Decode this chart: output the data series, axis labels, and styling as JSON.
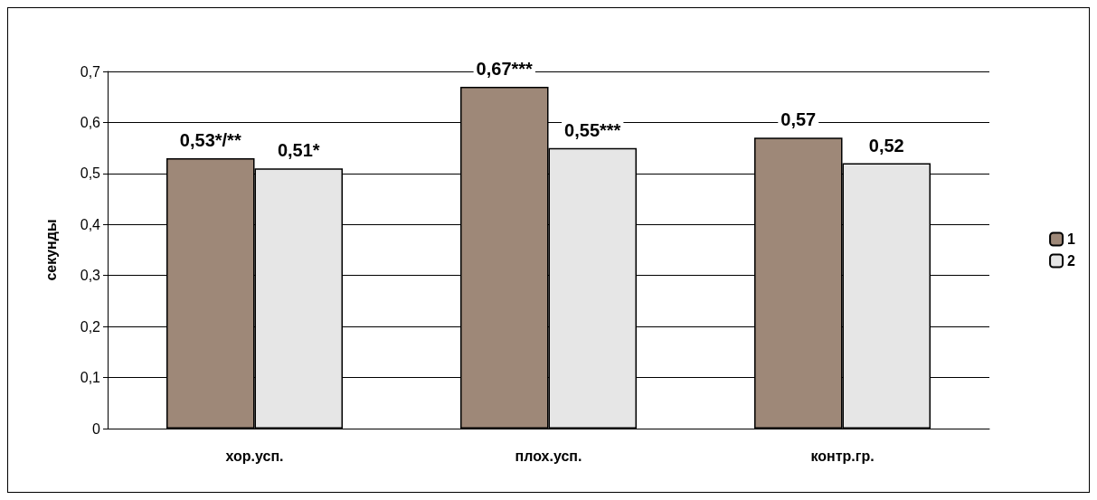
{
  "chart_data": {
    "type": "bar",
    "ylabel": "секунды",
    "categories": [
      "хор.усп.",
      "плох.усп.",
      "контр.гр."
    ],
    "series": [
      {
        "name": "1",
        "color": "#9e8878",
        "values": [
          0.53,
          0.67,
          0.57
        ],
        "value_labels": [
          "0,53*/**",
          "0,67***",
          "0,57"
        ]
      },
      {
        "name": "2",
        "color": "#e6e6e6",
        "values": [
          0.51,
          0.55,
          0.52
        ],
        "value_labels": [
          "0,51*",
          "0,55***",
          "0,52"
        ]
      }
    ],
    "ylim": [
      0,
      0.7
    ],
    "yticks": [
      0,
      {
        "value": 0.1,
        "label": "0,1"
      },
      {
        "value": 0.2,
        "label": "0,2"
      },
      {
        "value": 0.3,
        "label": "0,3"
      },
      {
        "value": 0.4,
        "label": "0,4"
      },
      {
        "value": 0.5,
        "label": "0,5"
      },
      {
        "value": 0.6,
        "label": "0,6"
      },
      {
        "value": 0.7,
        "label": "0,7"
      }
    ],
    "grid": "y",
    "legend": "right"
  }
}
